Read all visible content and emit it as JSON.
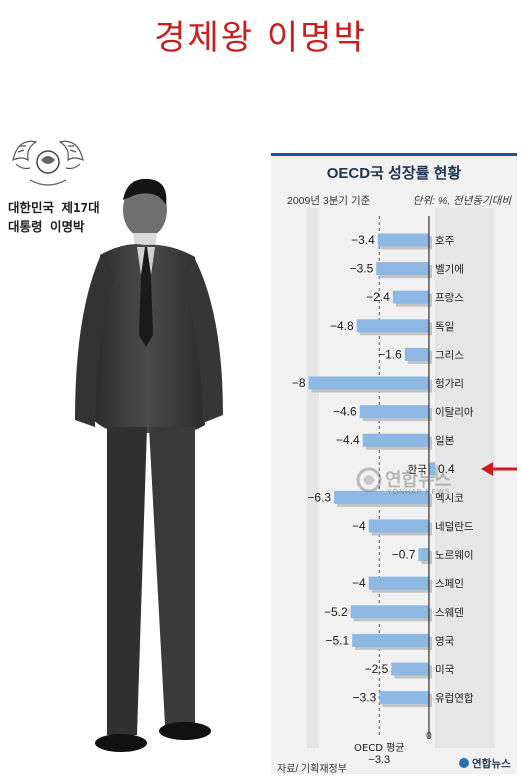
{
  "headline": "경제왕 이명박",
  "caption": {
    "line1": "대한민국 제17대",
    "line2": "대통령 이명박"
  },
  "chart_data": {
    "type": "bar",
    "title": "OECD국 성장률 현황",
    "subtitle": "2009년 3분기 기준",
    "unit_note": "단위: %, 전년동기대비",
    "categories": [
      "호주",
      "벨기에",
      "프랑스",
      "독일",
      "그리스",
      "헝가리",
      "이탈리아",
      "일본",
      "한국",
      "멕시코",
      "네덜란드",
      "노르웨이",
      "스페인",
      "스웨덴",
      "영국",
      "미국",
      "유럽연합"
    ],
    "values": [
      -3.4,
      -3.5,
      -2.4,
      -4.8,
      -1.6,
      -8,
      -4.6,
      -4.4,
      0.4,
      -6.3,
      -4,
      -0.7,
      -4,
      -5.2,
      -5.1,
      -2.5,
      -3.3
    ],
    "value_labels": [
      "−3.4",
      "−3.5",
      "−2.4",
      "−4.8",
      "−1.6",
      "−8",
      "−4.6",
      "−4.4",
      "0.4",
      "−6.3",
      "−4",
      "−0.7",
      "−4",
      "−5.2",
      "−5.1",
      "−2.5",
      "−3.3"
    ],
    "highlight": "한국",
    "average_label": "OECD 평균",
    "average_value": -3.3,
    "average_value_label": "−3.3",
    "zero_label": "0",
    "xlim": [
      -8.5,
      0.8
    ],
    "colors": {
      "bar": "#8cb8e3",
      "bar_shadow": "#c3c3c3",
      "title_rule": "#22538a",
      "highlight_arrow": "#c81e1e"
    }
  },
  "watermark": "연합뉴스",
  "watermark_sub": "YONHAP NEWS",
  "source": "자료/ 기획재정부",
  "logo": "연합뉴스"
}
